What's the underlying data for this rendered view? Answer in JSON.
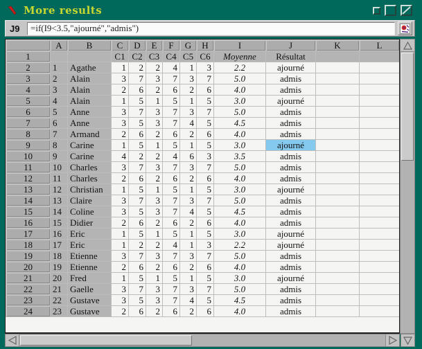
{
  "window": {
    "title": "More results",
    "buttons": {
      "iconify": "iconify",
      "maximize": "maximize",
      "close": "close"
    }
  },
  "icons": {
    "app_icon": "red-brush-stroke-icon",
    "formula_bar_icon": "app-logo-recalc-icon",
    "scroll_arrows": [
      "up",
      "down",
      "left",
      "right"
    ]
  },
  "formula_bar": {
    "cell_ref": "J9",
    "formula": "=if(I9<3.5,\"ajourné\",\"admis\")"
  },
  "colors": {
    "titlebar_teal": "#00695c",
    "title_text": "#c8d82e",
    "ui_gray": "#c6c6c6",
    "header_gray": "#b4b4b4",
    "cell_white": "#f5f5f4",
    "selected_cell_blue": "#85c9ee",
    "app_icon_red": "#cc2020"
  },
  "sheet": {
    "column_letters": [
      "A",
      "B",
      "C",
      "D",
      "E",
      "F",
      "G",
      "H",
      "I",
      "J",
      "K",
      "L"
    ],
    "header_row": {
      "row_num": "1",
      "course_labels": [
        "C1",
        "C2",
        "C3",
        "C4",
        "C5",
        "C6"
      ],
      "moyenne_label": "Moyenne",
      "resultat_label": "Résultat"
    },
    "selected": {
      "ref": "J9",
      "row": 9,
      "value": "ajourné"
    },
    "rows": [
      {
        "row": 2,
        "num": 1,
        "name": "Agathe",
        "grades": [
          1,
          2,
          2,
          4,
          1,
          3
        ],
        "moyenne": "2.2",
        "resultat": "ajourné"
      },
      {
        "row": 3,
        "num": 2,
        "name": "Alain",
        "grades": [
          3,
          7,
          3,
          7,
          3,
          7
        ],
        "moyenne": "5.0",
        "resultat": "admis"
      },
      {
        "row": 4,
        "num": 3,
        "name": "Alain",
        "grades": [
          2,
          6,
          2,
          6,
          2,
          6
        ],
        "moyenne": "4.0",
        "resultat": "admis"
      },
      {
        "row": 5,
        "num": 4,
        "name": "Alain",
        "grades": [
          1,
          5,
          1,
          5,
          1,
          5
        ],
        "moyenne": "3.0",
        "resultat": "ajourné"
      },
      {
        "row": 6,
        "num": 5,
        "name": "Anne",
        "grades": [
          3,
          7,
          3,
          7,
          3,
          7
        ],
        "moyenne": "5.0",
        "resultat": "admis"
      },
      {
        "row": 7,
        "num": 6,
        "name": "Anne",
        "grades": [
          3,
          5,
          3,
          7,
          4,
          5
        ],
        "moyenne": "4.5",
        "resultat": "admis"
      },
      {
        "row": 8,
        "num": 7,
        "name": "Armand",
        "grades": [
          2,
          6,
          2,
          6,
          2,
          6
        ],
        "moyenne": "4.0",
        "resultat": "admis"
      },
      {
        "row": 9,
        "num": 8,
        "name": "Carine",
        "grades": [
          1,
          5,
          1,
          5,
          1,
          5
        ],
        "moyenne": "3.0",
        "resultat": "ajourné"
      },
      {
        "row": 10,
        "num": 9,
        "name": "Carine",
        "grades": [
          4,
          2,
          2,
          4,
          6,
          3
        ],
        "moyenne": "3.5",
        "resultat": "admis"
      },
      {
        "row": 11,
        "num": 10,
        "name": "Charles",
        "grades": [
          3,
          7,
          3,
          7,
          3,
          7
        ],
        "moyenne": "5.0",
        "resultat": "admis"
      },
      {
        "row": 12,
        "num": 11,
        "name": "Charles",
        "grades": [
          2,
          6,
          2,
          6,
          2,
          6
        ],
        "moyenne": "4.0",
        "resultat": "admis"
      },
      {
        "row": 13,
        "num": 12,
        "name": "Christian",
        "grades": [
          1,
          5,
          1,
          5,
          1,
          5
        ],
        "moyenne": "3.0",
        "resultat": "ajourné"
      },
      {
        "row": 14,
        "num": 13,
        "name": "Claire",
        "grades": [
          3,
          7,
          3,
          7,
          3,
          7
        ],
        "moyenne": "5.0",
        "resultat": "admis"
      },
      {
        "row": 15,
        "num": 14,
        "name": "Coline",
        "grades": [
          3,
          5,
          3,
          7,
          4,
          5
        ],
        "moyenne": "4.5",
        "resultat": "admis"
      },
      {
        "row": 16,
        "num": 15,
        "name": "Didier",
        "grades": [
          2,
          6,
          2,
          6,
          2,
          6
        ],
        "moyenne": "4.0",
        "resultat": "admis"
      },
      {
        "row": 17,
        "num": 16,
        "name": "Eric",
        "grades": [
          1,
          5,
          1,
          5,
          1,
          5
        ],
        "moyenne": "3.0",
        "resultat": "ajourné"
      },
      {
        "row": 18,
        "num": 17,
        "name": "Eric",
        "grades": [
          1,
          2,
          2,
          4,
          1,
          3
        ],
        "moyenne": "2.2",
        "resultat": "ajourné"
      },
      {
        "row": 19,
        "num": 18,
        "name": "Etienne",
        "grades": [
          3,
          7,
          3,
          7,
          3,
          7
        ],
        "moyenne": "5.0",
        "resultat": "admis"
      },
      {
        "row": 20,
        "num": 19,
        "name": "Etienne",
        "grades": [
          2,
          6,
          2,
          6,
          2,
          6
        ],
        "moyenne": "4.0",
        "resultat": "admis"
      },
      {
        "row": 21,
        "num": 20,
        "name": "Fred",
        "grades": [
          1,
          5,
          1,
          5,
          1,
          5
        ],
        "moyenne": "3.0",
        "resultat": "ajourné"
      },
      {
        "row": 22,
        "num": 21,
        "name": "Gaelle",
        "grades": [
          3,
          7,
          3,
          7,
          3,
          7
        ],
        "moyenne": "5.0",
        "resultat": "admis"
      },
      {
        "row": 23,
        "num": 22,
        "name": "Gustave",
        "grades": [
          3,
          5,
          3,
          7,
          4,
          5
        ],
        "moyenne": "4.5",
        "resultat": "admis"
      },
      {
        "row": 24,
        "num": 23,
        "name": "Gustave",
        "grades": [
          2,
          6,
          2,
          6,
          2,
          6
        ],
        "moyenne": "4.0",
        "resultat": "admis"
      }
    ]
  }
}
